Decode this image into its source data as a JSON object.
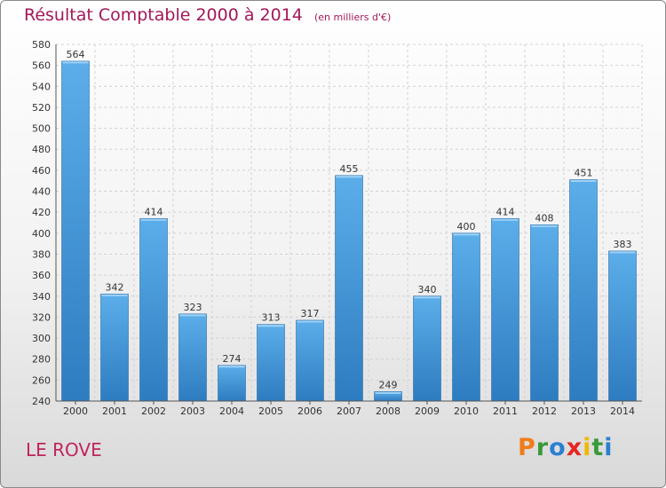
{
  "header": {
    "title": "Résultat Comptable 2000 à 2014",
    "subtitle": "(en milliers d'€)"
  },
  "location": "LE ROVE",
  "logo": {
    "text": "Proxiti",
    "letters": [
      {
        "ch": "P",
        "color": "#f07c1a"
      },
      {
        "ch": "r",
        "color": "#3a9a3a"
      },
      {
        "ch": "o",
        "color": "#2b7fd1"
      },
      {
        "ch": "x",
        "color": "#e6261f"
      },
      {
        "ch": "i",
        "color": "#f2b705"
      },
      {
        "ch": "t",
        "color": "#3a9a3a"
      },
      {
        "ch": "i",
        "color": "#2b7fd1"
      }
    ]
  },
  "colors": {
    "bar_top": "#5caeea",
    "bar_bottom": "#2d7cc0",
    "title": "#a3185a"
  },
  "chart_data": {
    "type": "bar",
    "title": "Résultat Comptable 2000 à 2014",
    "subtitle": "(en milliers d'€)",
    "xlabel": "",
    "ylabel": "",
    "categories": [
      "2000",
      "2001",
      "2002",
      "2003",
      "2004",
      "2005",
      "2006",
      "2007",
      "2008",
      "2009",
      "2010",
      "2011",
      "2012",
      "2013",
      "2014"
    ],
    "values": [
      564,
      342,
      414,
      323,
      274,
      313,
      317,
      455,
      249,
      340,
      400,
      414,
      408,
      451,
      383
    ],
    "ylim": [
      240,
      580
    ],
    "yticks": [
      240,
      260,
      280,
      300,
      320,
      340,
      360,
      380,
      400,
      420,
      440,
      460,
      480,
      500,
      520,
      540,
      560,
      580
    ],
    "grid": true
  }
}
